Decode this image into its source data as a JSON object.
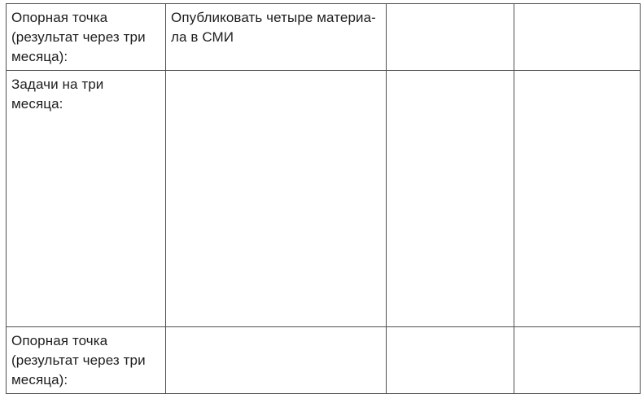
{
  "colors": {
    "background": "#ffffff",
    "border": "#505050",
    "text": "#1e1e1e"
  },
  "table": {
    "rows": [
      {
        "cells": [
          "Опорная точка\n(результат через три\nмесяца):",
          "Опубликовать четыре материа-\nла в СМИ",
          "",
          ""
        ]
      },
      {
        "cells": [
          "Задачи на три месяца:",
          "",
          "",
          ""
        ]
      },
      {
        "cells": [
          "Опорная точка\n(результат через три\nмесяца):",
          "",
          "",
          ""
        ]
      }
    ]
  }
}
